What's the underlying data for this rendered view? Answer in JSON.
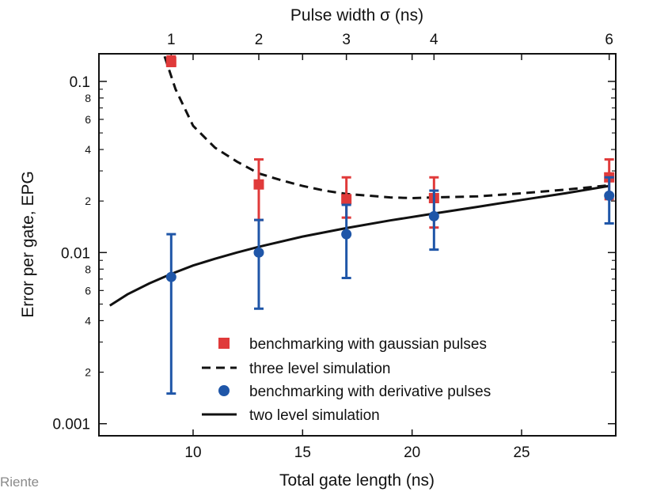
{
  "chart_data": {
    "type": "scatter",
    "xlabel": "Total gate length (ns)",
    "ylabel": "Error per gate, EPG",
    "top_xlabel": "Pulse width  σ (ns)",
    "xlim": [
      5.7,
      29.3
    ],
    "ylim": [
      0.00085,
      0.145
    ],
    "yscale": "log",
    "x_ticks": [
      10,
      15,
      20,
      25
    ],
    "y_major_ticks": [
      {
        "value": 0.1,
        "label": "0.1"
      },
      {
        "value": 0.01,
        "label": "0.01"
      },
      {
        "value": 0.001,
        "label": "0.001"
      }
    ],
    "y_minor_ticks": [
      {
        "value": 0.08,
        "label": "8"
      },
      {
        "value": 0.06,
        "label": "6"
      },
      {
        "value": 0.04,
        "label": "4"
      },
      {
        "value": 0.02,
        "label": "2"
      },
      {
        "value": 0.008,
        "label": "8"
      },
      {
        "value": 0.006,
        "label": "6"
      },
      {
        "value": 0.004,
        "label": "4"
      },
      {
        "value": 0.002,
        "label": "2"
      }
    ],
    "top_ticks": [
      {
        "x": 9,
        "label": "1"
      },
      {
        "x": 13,
        "label": "2"
      },
      {
        "x": 17,
        "label": "3"
      },
      {
        "x": 21,
        "label": "4"
      },
      {
        "x": 29,
        "label": "6"
      }
    ],
    "legend_position": "bottom-center",
    "series": [
      {
        "name": "benchmarking with gaussian pulses",
        "kind": "points",
        "marker": "square",
        "color": "#e03a3a",
        "points": [
          {
            "x": 9,
            "y": 0.13,
            "lo": 0.123,
            "hi": 0.14
          },
          {
            "x": 13,
            "y": 0.025,
            "lo": 0.0155,
            "hi": 0.035
          },
          {
            "x": 17,
            "y": 0.0205,
            "lo": 0.016,
            "hi": 0.0275
          },
          {
            "x": 21,
            "y": 0.0208,
            "lo": 0.014,
            "hi": 0.0275
          },
          {
            "x": 29,
            "y": 0.0275,
            "lo": 0.0205,
            "hi": 0.035
          }
        ]
      },
      {
        "name": "three level simulation",
        "kind": "line",
        "dash": true,
        "color": "#111111",
        "points": [
          {
            "x": 8.7,
            "y": 0.14
          },
          {
            "x": 9.2,
            "y": 0.09
          },
          {
            "x": 10,
            "y": 0.055
          },
          {
            "x": 11,
            "y": 0.041
          },
          {
            "x": 12,
            "y": 0.034
          },
          {
            "x": 13,
            "y": 0.029
          },
          {
            "x": 14,
            "y": 0.0265
          },
          {
            "x": 15,
            "y": 0.0245
          },
          {
            "x": 16,
            "y": 0.023
          },
          {
            "x": 17,
            "y": 0.022
          },
          {
            "x": 19,
            "y": 0.021
          },
          {
            "x": 20,
            "y": 0.0208
          },
          {
            "x": 21,
            "y": 0.021
          },
          {
            "x": 23,
            "y": 0.0213
          },
          {
            "x": 25,
            "y": 0.0222
          },
          {
            "x": 27,
            "y": 0.0233
          },
          {
            "x": 29,
            "y": 0.0247
          }
        ]
      },
      {
        "name": "benchmarking with derivative pulses",
        "kind": "points",
        "marker": "circle",
        "color": "#1f56a8",
        "points": [
          {
            "x": 9,
            "y": 0.0072,
            "lo": 0.0015,
            "hi": 0.0128
          },
          {
            "x": 13,
            "y": 0.01,
            "lo": 0.0047,
            "hi": 0.0155
          },
          {
            "x": 17,
            "y": 0.0128,
            "lo": 0.0071,
            "hi": 0.019
          },
          {
            "x": 21,
            "y": 0.0163,
            "lo": 0.0104,
            "hi": 0.023
          },
          {
            "x": 29,
            "y": 0.0215,
            "lo": 0.0148,
            "hi": 0.0275
          }
        ]
      },
      {
        "name": "two level simulation",
        "kind": "line",
        "dash": false,
        "color": "#111111",
        "points": [
          {
            "x": 6.2,
            "y": 0.0049
          },
          {
            "x": 7,
            "y": 0.0057
          },
          {
            "x": 8,
            "y": 0.0066
          },
          {
            "x": 9,
            "y": 0.0075
          },
          {
            "x": 10,
            "y": 0.0084
          },
          {
            "x": 11,
            "y": 0.0092
          },
          {
            "x": 12,
            "y": 0.01
          },
          {
            "x": 13,
            "y": 0.0108
          },
          {
            "x": 15,
            "y": 0.0124
          },
          {
            "x": 17,
            "y": 0.0139
          },
          {
            "x": 19,
            "y": 0.0154
          },
          {
            "x": 21,
            "y": 0.0169
          },
          {
            "x": 23,
            "y": 0.0185
          },
          {
            "x": 25,
            "y": 0.0203
          },
          {
            "x": 27,
            "y": 0.0222
          },
          {
            "x": 29,
            "y": 0.0245
          }
        ]
      }
    ],
    "legend_order": [
      0,
      1,
      2,
      3
    ]
  },
  "credit": "Riente"
}
